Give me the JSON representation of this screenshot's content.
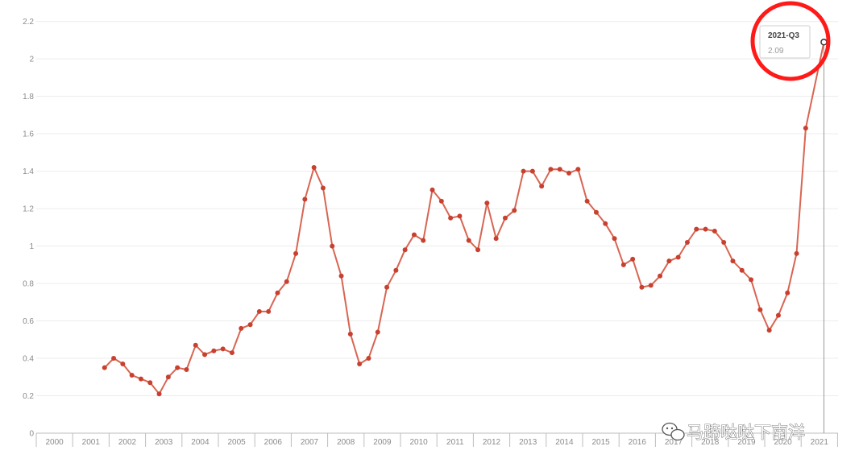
{
  "chart_data": {
    "type": "line",
    "title": "",
    "xlabel": "",
    "ylabel": "",
    "ylim": [
      0,
      2.2
    ],
    "y_ticks": [
      "0",
      "0.2",
      "0.4",
      "0.6",
      "0.8",
      "1",
      "1.2",
      "1.4",
      "1.6",
      "1.8",
      "2",
      "2.2"
    ],
    "x_categories": [
      "2000",
      "2001",
      "2002",
      "2003",
      "2004",
      "2005",
      "2006",
      "2007",
      "2008",
      "2009",
      "2010",
      "2011",
      "2012",
      "2013",
      "2014",
      "2015",
      "2016",
      "2017",
      "2018",
      "2019",
      "2020",
      "2021"
    ],
    "grid": true,
    "legend": "none",
    "series": [
      {
        "values": [
          {
            "x": "2001-Q4",
            "y": 0.35
          },
          {
            "x": "2002-Q1",
            "y": 0.4
          },
          {
            "x": "2002-Q2",
            "y": 0.37
          },
          {
            "x": "2002-Q3",
            "y": 0.31
          },
          {
            "x": "2002-Q4",
            "y": 0.29
          },
          {
            "x": "2003-Q1",
            "y": 0.27
          },
          {
            "x": "2003-Q2",
            "y": 0.21
          },
          {
            "x": "2003-Q3",
            "y": 0.3
          },
          {
            "x": "2003-Q4",
            "y": 0.35
          },
          {
            "x": "2004-Q1",
            "y": 0.34
          },
          {
            "x": "2004-Q2",
            "y": 0.47
          },
          {
            "x": "2004-Q3",
            "y": 0.42
          },
          {
            "x": "2004-Q4",
            "y": 0.44
          },
          {
            "x": "2005-Q1",
            "y": 0.45
          },
          {
            "x": "2005-Q2",
            "y": 0.43
          },
          {
            "x": "2005-Q3",
            "y": 0.56
          },
          {
            "x": "2005-Q4",
            "y": 0.58
          },
          {
            "x": "2006-Q1",
            "y": 0.65
          },
          {
            "x": "2006-Q2",
            "y": 0.65
          },
          {
            "x": "2006-Q3",
            "y": 0.75
          },
          {
            "x": "2006-Q4",
            "y": 0.81
          },
          {
            "x": "2007-Q1",
            "y": 0.96
          },
          {
            "x": "2007-Q2",
            "y": 1.25
          },
          {
            "x": "2007-Q3",
            "y": 1.42
          },
          {
            "x": "2007-Q4",
            "y": 1.31
          },
          {
            "x": "2008-Q1",
            "y": 1.0
          },
          {
            "x": "2008-Q2",
            "y": 0.84
          },
          {
            "x": "2008-Q3",
            "y": 0.53
          },
          {
            "x": "2008-Q4",
            "y": 0.37
          },
          {
            "x": "2009-Q1",
            "y": 0.4
          },
          {
            "x": "2009-Q2",
            "y": 0.54
          },
          {
            "x": "2009-Q3",
            "y": 0.78
          },
          {
            "x": "2009-Q4",
            "y": 0.87
          },
          {
            "x": "2010-Q1",
            "y": 0.98
          },
          {
            "x": "2010-Q2",
            "y": 1.06
          },
          {
            "x": "2010-Q3",
            "y": 1.03
          },
          {
            "x": "2010-Q4",
            "y": 1.3
          },
          {
            "x": "2011-Q1",
            "y": 1.24
          },
          {
            "x": "2011-Q2",
            "y": 1.15
          },
          {
            "x": "2011-Q3",
            "y": 1.16
          },
          {
            "x": "2011-Q4",
            "y": 1.03
          },
          {
            "x": "2012-Q1",
            "y": 0.98
          },
          {
            "x": "2012-Q2",
            "y": 1.23
          },
          {
            "x": "2012-Q3",
            "y": 1.04
          },
          {
            "x": "2012-Q4",
            "y": 1.15
          },
          {
            "x": "2013-Q1",
            "y": 1.19
          },
          {
            "x": "2013-Q2",
            "y": 1.4
          },
          {
            "x": "2013-Q3",
            "y": 1.4
          },
          {
            "x": "2013-Q4",
            "y": 1.32
          },
          {
            "x": "2014-Q1",
            "y": 1.41
          },
          {
            "x": "2014-Q2",
            "y": 1.41
          },
          {
            "x": "2014-Q3",
            "y": 1.39
          },
          {
            "x": "2014-Q4",
            "y": 1.41
          },
          {
            "x": "2015-Q1",
            "y": 1.24
          },
          {
            "x": "2015-Q2",
            "y": 1.18
          },
          {
            "x": "2015-Q3",
            "y": 1.12
          },
          {
            "x": "2015-Q4",
            "y": 1.04
          },
          {
            "x": "2016-Q1",
            "y": 0.9
          },
          {
            "x": "2016-Q2",
            "y": 0.93
          },
          {
            "x": "2016-Q3",
            "y": 0.78
          },
          {
            "x": "2016-Q4",
            "y": 0.79
          },
          {
            "x": "2017-Q1",
            "y": 0.84
          },
          {
            "x": "2017-Q2",
            "y": 0.92
          },
          {
            "x": "2017-Q3",
            "y": 0.94
          },
          {
            "x": "2017-Q4",
            "y": 1.02
          },
          {
            "x": "2018-Q1",
            "y": 1.09
          },
          {
            "x": "2018-Q2",
            "y": 1.09
          },
          {
            "x": "2018-Q3",
            "y": 1.08
          },
          {
            "x": "2018-Q4",
            "y": 1.02
          },
          {
            "x": "2019-Q1",
            "y": 0.92
          },
          {
            "x": "2019-Q2",
            "y": 0.87
          },
          {
            "x": "2019-Q3",
            "y": 0.82
          },
          {
            "x": "2019-Q4",
            "y": 0.66
          },
          {
            "x": "2020-Q1",
            "y": 0.55
          },
          {
            "x": "2020-Q2",
            "y": 0.63
          },
          {
            "x": "2020-Q3",
            "y": 0.75
          },
          {
            "x": "2020-Q4",
            "y": 0.96
          },
          {
            "x": "2021-Q1",
            "y": 1.63
          },
          {
            "x": "2021-Q3",
            "y": 2.09
          }
        ]
      }
    ],
    "tooltip": {
      "label": "2021-Q3",
      "value": "2.09"
    },
    "colors": {
      "line": "#d86552",
      "marker": "#c8402f",
      "highlight": "#ff1a1a"
    }
  },
  "watermark": {
    "text": "马蹄哒哒下南洋"
  }
}
